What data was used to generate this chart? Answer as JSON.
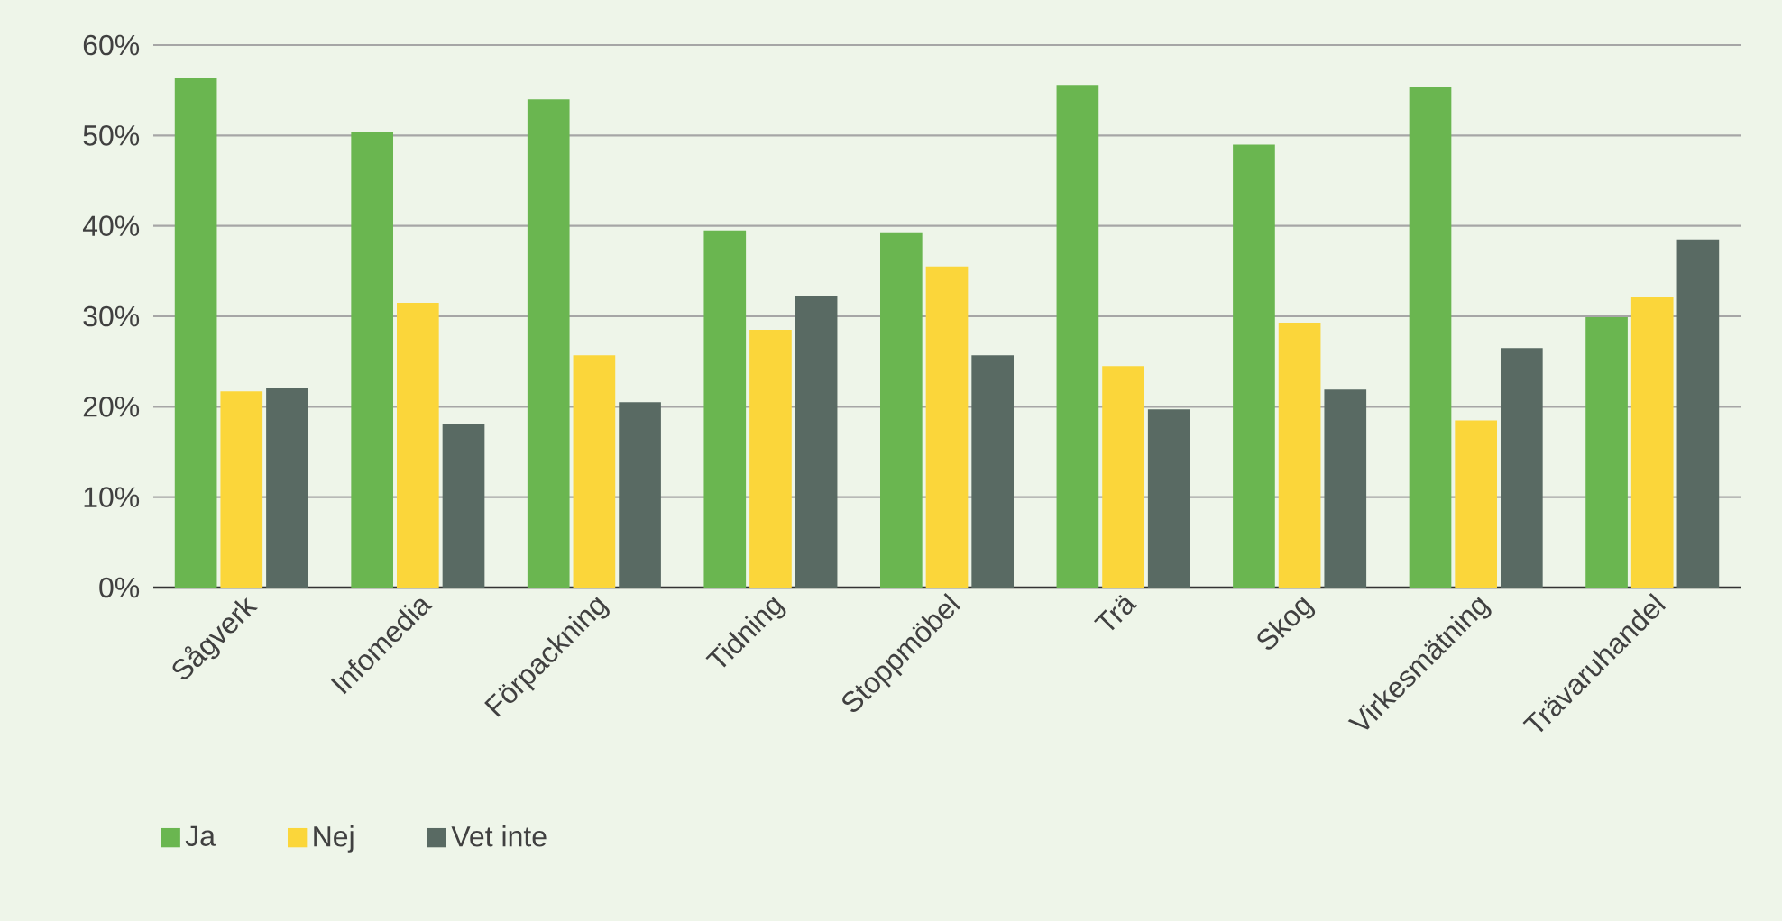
{
  "chart_data": {
    "type": "bar",
    "categories": [
      "Sågverk",
      "Infomedia",
      "Förpackning",
      "Tidning",
      "Stoppmöbel",
      "Trä",
      "Skog",
      "Virkesmätning",
      "Trävaruhandel"
    ],
    "series": [
      {
        "name": "Ja",
        "color": "#6ab650",
        "values": [
          56.4,
          50.4,
          54.0,
          39.5,
          39.3,
          55.6,
          49.0,
          55.4,
          29.9
        ]
      },
      {
        "name": "Nej",
        "color": "#fbd63a",
        "values": [
          21.7,
          31.5,
          25.7,
          28.5,
          35.5,
          24.5,
          29.3,
          18.5,
          32.1
        ]
      },
      {
        "name": "Vet inte",
        "color": "#596a63",
        "values": [
          22.1,
          18.1,
          20.5,
          32.3,
          25.7,
          19.7,
          21.9,
          26.5,
          38.5
        ]
      }
    ],
    "ylim": [
      0,
      60
    ],
    "yticks": [
      {
        "value": 0,
        "label": "0%"
      },
      {
        "value": 10,
        "label": "10%"
      },
      {
        "value": 20,
        "label": "20%"
      },
      {
        "value": 30,
        "label": "30%"
      },
      {
        "value": 40,
        "label": "40%"
      },
      {
        "value": 50,
        "label": "50%"
      },
      {
        "value": 60,
        "label": "60%"
      }
    ],
    "grid": "y",
    "legend": "bottom left"
  }
}
